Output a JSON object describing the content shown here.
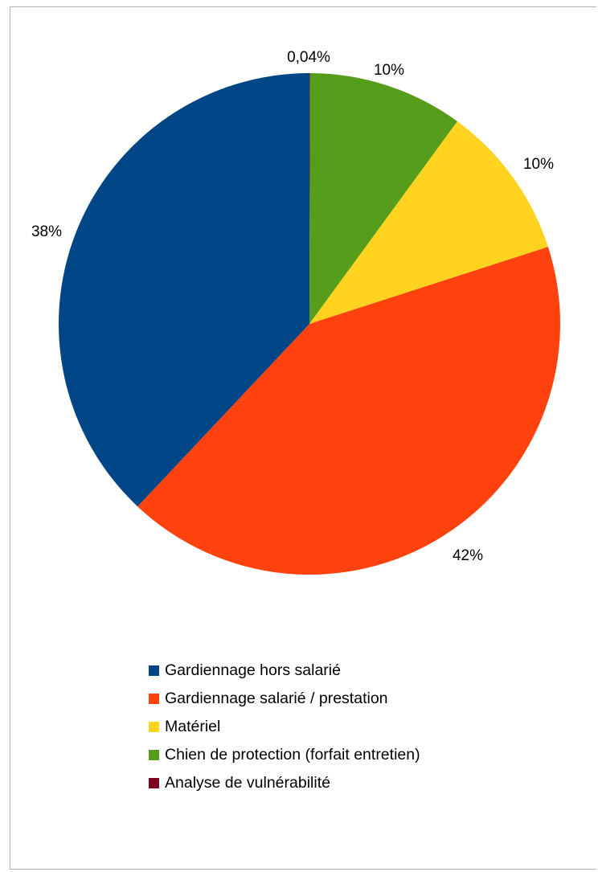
{
  "chart_data": {
    "type": "pie",
    "title": "",
    "slices": [
      {
        "label": "Analyse de vulnérabilité",
        "value": 0.04,
        "display": "0,04%",
        "color": "#7e0021"
      },
      {
        "label": "Chien de protection (forfait entretien)",
        "value": 10,
        "display": "10%",
        "color": "#579d1c"
      },
      {
        "label": "Matériel",
        "value": 10,
        "display": "10%",
        "color": "#ffd320"
      },
      {
        "label": "Gardiennage  salarié / prestation",
        "value": 42,
        "display": "42%",
        "color": "#ff420e"
      },
      {
        "label": "Gardiennage hors salarié",
        "value": 38,
        "display": "38%",
        "color": "#004586"
      }
    ],
    "legend": {
      "position": "bottom",
      "items": [
        {
          "label": "Gardiennage hors salarié",
          "color": "#004586"
        },
        {
          "label": "Gardiennage  salarié / prestation",
          "color": "#ff420e"
        },
        {
          "label": "Matériel",
          "color": "#ffd320"
        },
        {
          "label": "Chien de protection (forfait entretien)",
          "color": "#579d1c"
        },
        {
          "label": "Analyse de vulnérabilité",
          "color": "#7e0021"
        }
      ]
    }
  }
}
